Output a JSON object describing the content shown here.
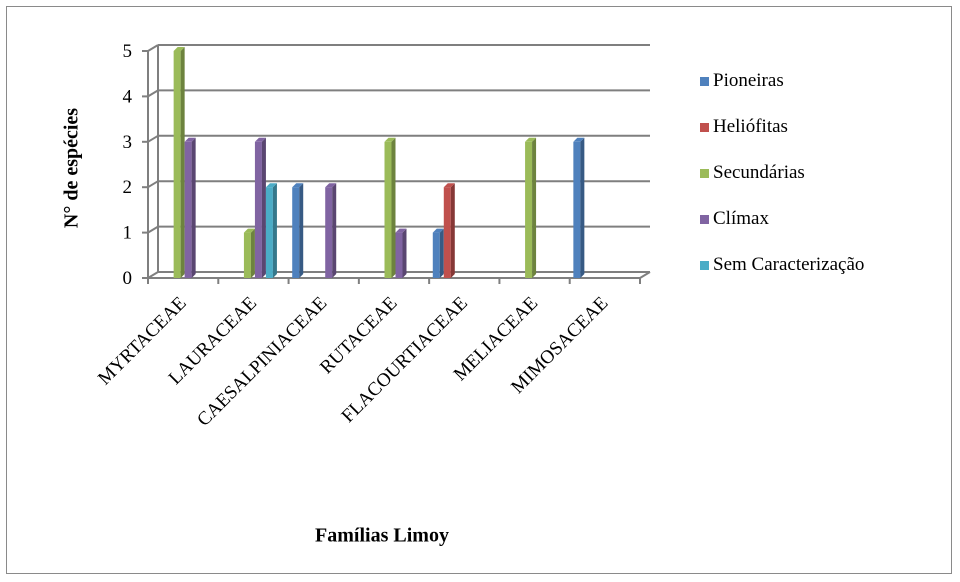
{
  "chart_data": {
    "type": "bar",
    "categories": [
      "MYRTACEAE",
      "LAURACEAE",
      "CAESALPINIACEAE",
      "RUTACEAE",
      "FLACOURTIACEAE",
      "MELIACEAE",
      "MIMOSACEAE"
    ],
    "series": [
      {
        "name": "Pioneiras",
        "color": "#4F81BD",
        "values": [
          0,
          0,
          2,
          0,
          1,
          0,
          3
        ]
      },
      {
        "name": "Heliófitas",
        "color": "#C0504D",
        "values": [
          0,
          0,
          0,
          0,
          2,
          0,
          0
        ]
      },
      {
        "name": "Secundárias",
        "color": "#9BBB59",
        "values": [
          5,
          1,
          0,
          3,
          0,
          3,
          0
        ]
      },
      {
        "name": "Clímax",
        "color": "#8064A2",
        "values": [
          3,
          3,
          2,
          1,
          0,
          0,
          0
        ]
      },
      {
        "name": "Sem Caracterização",
        "color": "#4BACC6",
        "values": [
          0,
          2,
          0,
          0,
          0,
          0,
          0
        ]
      }
    ],
    "xlabel": "Famílias Limoy",
    "ylabel": "N° de espécies",
    "ylim": [
      0,
      5
    ],
    "yticks": [
      0,
      1,
      2,
      3,
      4,
      5
    ],
    "grid": true,
    "legend_position": "right"
  }
}
